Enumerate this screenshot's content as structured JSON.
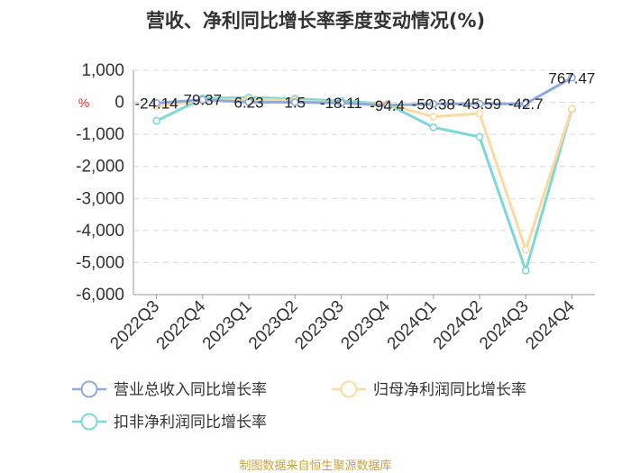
{
  "chart_data": {
    "type": "line",
    "title": "营收、净利同比增长率季度变动情况(%)",
    "ylabel": "%",
    "ylim": [
      -6000,
      1000
    ],
    "yticks": [
      1000,
      0,
      -1000,
      -2000,
      -3000,
      -4000,
      -5000,
      -6000
    ],
    "ytick_labels": [
      "1,000",
      "0",
      "-1,000",
      "-2,000",
      "-3,000",
      "-4,000",
      "-5,000",
      "-6,000"
    ],
    "categories": [
      "2022Q3",
      "2022Q4",
      "2023Q1",
      "2023Q2",
      "2023Q3",
      "2023Q4",
      "2024Q1",
      "2024Q2",
      "2024Q3",
      "2024Q4"
    ],
    "grid": true,
    "legend_position": "bottom",
    "series": [
      {
        "name": "营业总收入同比增长率",
        "color": "#8eaadb",
        "values": [
          -24.14,
          79.37,
          6.23,
          1.5,
          -18.11,
          -94.4,
          -50.38,
          -45.59,
          -42.7,
          767.47
        ],
        "labels": [
          "-24.14",
          "79.37",
          "6.23",
          "1.5",
          "-18.11",
          "-94.4",
          "-50.38",
          "-45.59",
          "-42.7",
          "767.47"
        ]
      },
      {
        "name": "归母净利润同比增长率",
        "color": "#fcd9a0",
        "values": [
          -120,
          60,
          90,
          60,
          -20,
          -60,
          -450,
          -350,
          -4600,
          -200
        ]
      },
      {
        "name": "扣非净利润同比增长率",
        "color": "#7fd6d6",
        "values": [
          -580,
          120,
          150,
          110,
          40,
          -50,
          -780,
          -1080,
          -5250,
          -210
        ]
      }
    ]
  },
  "source_note": "制图数据来自恒生聚源数据库"
}
